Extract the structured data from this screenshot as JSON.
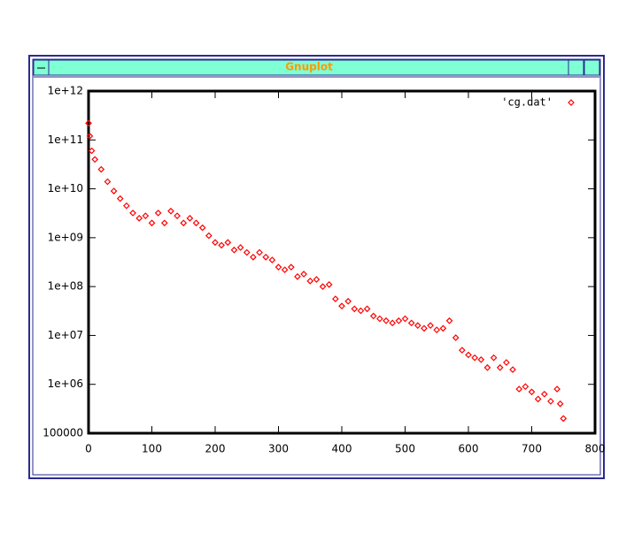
{
  "window": {
    "title": "Gnuplot"
  },
  "chart_data": {
    "type": "scatter",
    "log_y": true,
    "legend": "top-right",
    "series": [
      {
        "name": "'cg.dat'",
        "color": "#ff0000",
        "x": [
          0,
          2,
          5,
          10,
          20,
          30,
          40,
          50,
          60,
          70,
          80,
          90,
          100,
          110,
          120,
          130,
          140,
          150,
          160,
          170,
          180,
          190,
          200,
          210,
          220,
          230,
          240,
          250,
          260,
          270,
          280,
          290,
          300,
          310,
          320,
          330,
          340,
          350,
          360,
          370,
          380,
          390,
          400,
          410,
          420,
          430,
          440,
          450,
          460,
          470,
          480,
          490,
          500,
          510,
          520,
          530,
          540,
          550,
          560,
          570,
          580,
          590,
          600,
          610,
          620,
          630,
          640,
          650,
          660,
          670,
          680,
          690,
          700,
          710,
          720,
          730,
          740,
          745,
          750
        ],
        "values": [
          220000000000.0,
          120000000000.0,
          60000000000.0,
          40000000000.0,
          25000000000.0,
          14000000000.0,
          9000000000.0,
          6300000000.0,
          4500000000.0,
          3200000000.0,
          2500000000.0,
          2800000000.0,
          2000000000.0,
          3200000000.0,
          2000000000.0,
          3500000000.0,
          2800000000.0,
          2000000000.0,
          2500000000.0,
          2000000000.0,
          1600000000.0,
          1100000000.0,
          800000000.0,
          700000000.0,
          800000000.0,
          560000000.0,
          630000000.0,
          500000000.0,
          400000000.0,
          500000000.0,
          400000000.0,
          350000000.0,
          250000000.0,
          220000000.0,
          250000000.0,
          160000000.0,
          180000000.0,
          130000000.0,
          140000000.0,
          100000000.0,
          110000000.0,
          56000000.0,
          40000000.0,
          50000000.0,
          35000000.0,
          32000000.0,
          35000000.0,
          25000000.0,
          22000000.0,
          20000000.0,
          18000000.0,
          20000000.0,
          22000000.0,
          18000000.0,
          16000000.0,
          14000000.0,
          16000000.0,
          13000000.0,
          14000000.0,
          20000000.0,
          9000000.0,
          5000000.0,
          4000000.0,
          3500000.0,
          3200000.0,
          2200000.0,
          3500000.0,
          2200000.0,
          2800000.0,
          2000000.0,
          800000.0,
          900000.0,
          700000.0,
          500000.0,
          630000.0,
          450000.0,
          800000.0,
          400000.0,
          200000.0
        ]
      }
    ],
    "xlim": [
      0,
      800
    ],
    "xticks": [
      0,
      100,
      200,
      300,
      400,
      500,
      600,
      700,
      800
    ],
    "ylim": [
      100000,
      1000000000000.0
    ],
    "yticks": [
      100000,
      {
        "value": 1000000,
        "label": "1e+06"
      },
      {
        "value": 10000000,
        "label": "1e+07"
      },
      {
        "value": 100000000,
        "label": "1e+08"
      },
      {
        "value": 1000000000,
        "label": "1e+09"
      },
      {
        "value": 10000000000,
        "label": "1e+10"
      },
      {
        "value": 100000000000,
        "label": "1e+11"
      },
      {
        "value": 1000000000000,
        "label": "1e+12"
      }
    ]
  }
}
